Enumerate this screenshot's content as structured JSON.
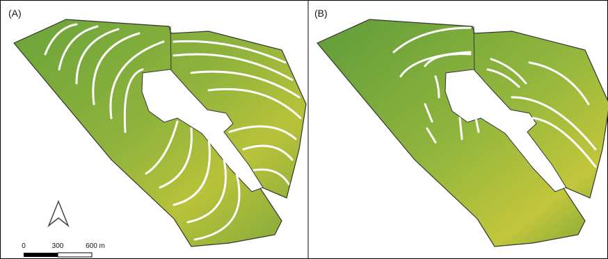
{
  "panels": [
    {
      "label": "(A)"
    },
    {
      "label": "(B)"
    }
  ],
  "scale_bar": {
    "labels": [
      "0",
      "300",
      "600 m"
    ]
  }
}
